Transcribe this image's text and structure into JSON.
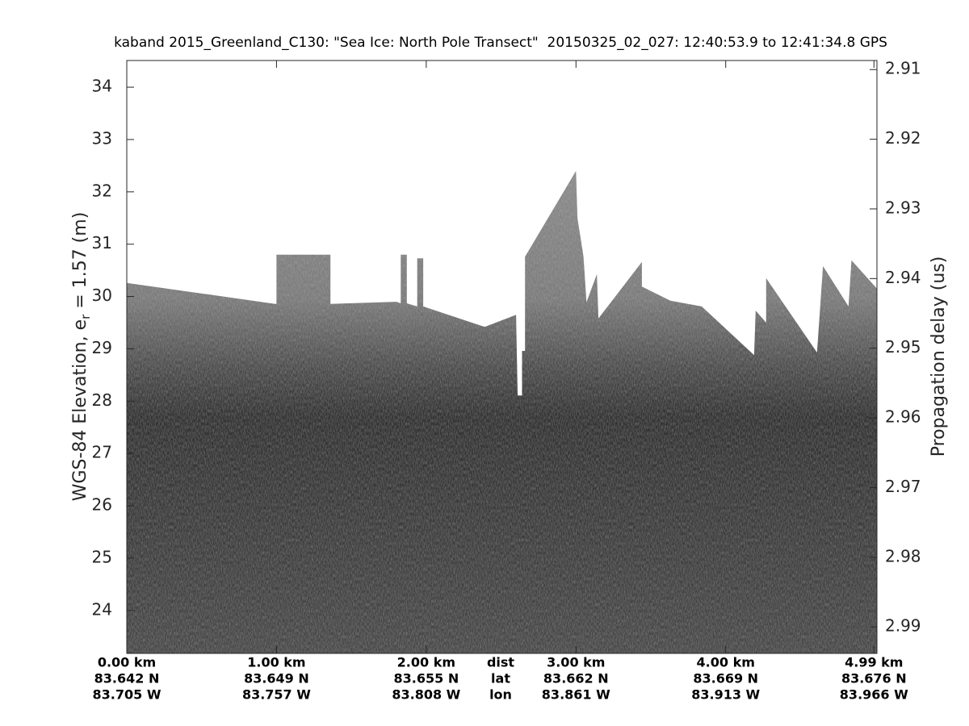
{
  "chart_data": {
    "type": "echogram",
    "title": "kaband 2015_Greenland_C130: \"Sea Ice: North Pole Transect\"  20150325_02_027: 12:40:53.9 to 12:41:34.8 GPS",
    "ylabel": "WGS-84 Elevation, e",
    "ylabel_sub": "r",
    "ylabel_end": " = 1.57 (m)",
    "y2label": "Propagation delay (us)",
    "xlim": [
      0,
      5.01
    ],
    "ylim": [
      23.18,
      34.51
    ],
    "yticks": [
      24,
      25,
      26,
      27,
      28,
      29,
      30,
      31,
      32,
      33,
      34
    ],
    "y2lim": [
      2.9087,
      2.9938
    ],
    "y2reverse": true,
    "y2ticks": [
      2.91,
      2.92,
      2.93,
      2.94,
      2.95,
      2.96,
      2.97,
      2.98,
      2.99
    ],
    "xticks": [
      {
        "value": 0,
        "label": "0.00 km"
      },
      {
        "value": 1,
        "label": "1.00 km"
      },
      {
        "value": 2,
        "label": "2.00 km"
      },
      {
        "value": 3,
        "label": "3.00 km"
      },
      {
        "value": 4,
        "label": "4.00 km"
      },
      {
        "value": 4.99,
        "label": "4.99 km"
      }
    ],
    "lat_labels": [
      "83.642 N",
      "83.649 N",
      "83.655 N",
      "83.662 N",
      "83.669 N",
      "83.676 N"
    ],
    "lon_labels": [
      "83.705 W",
      "83.757 W",
      "83.808 W",
      "83.861 W",
      "83.913 W",
      "83.966 W"
    ],
    "row_labels": [
      "dist",
      "lat",
      "lon"
    ],
    "surface": {
      "x": [
        0,
        0.99,
        1.0,
        1.0,
        1.36,
        1.36,
        1.8,
        1.83,
        1.83,
        1.87,
        1.87,
        1.94,
        1.94,
        1.98,
        1.98,
        2.39,
        2.6,
        2.61,
        2.64,
        2.64,
        2.66,
        2.66,
        3.0,
        3.01,
        3.05,
        3.07,
        3.14,
        3.15,
        3.44,
        3.44,
        3.63,
        3.84,
        4.19,
        4.2,
        4.27,
        4.27,
        4.61,
        4.63,
        4.65,
        4.82,
        4.84,
        5.01
      ],
      "values": [
        30.26,
        29.86,
        29.86,
        30.8,
        30.8,
        29.86,
        29.9,
        29.87,
        30.8,
        30.8,
        29.87,
        29.81,
        30.73,
        30.73,
        29.81,
        29.42,
        29.65,
        28.11,
        28.11,
        28.96,
        28.96,
        30.76,
        32.4,
        31.5,
        30.76,
        29.89,
        30.43,
        29.58,
        30.66,
        30.19,
        29.92,
        29.81,
        28.88,
        29.73,
        29.5,
        30.35,
        28.93,
        29.76,
        30.58,
        29.81,
        30.69,
        30.15
      ]
    }
  }
}
